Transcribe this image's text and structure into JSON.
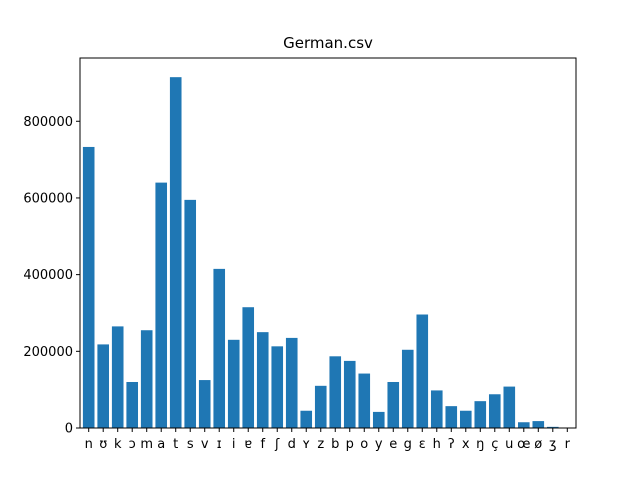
{
  "chart_data": {
    "type": "bar",
    "title": "German.csv",
    "xlabel": "",
    "ylabel": "",
    "categories": [
      "n",
      "ʊ",
      "k",
      "ɔ",
      "m",
      "a",
      "t",
      "s",
      "v",
      "ɪ",
      "i",
      "ɐ",
      "f",
      "ʃ",
      "d",
      "ʏ",
      "z",
      "b",
      "p",
      "o",
      "y",
      "e",
      "g",
      "ɛ",
      "h",
      "ʔ",
      "x",
      "ŋ",
      "ç",
      "u",
      "œ",
      "ø",
      "ʒ",
      "r"
    ],
    "values": [
      733000,
      218000,
      265000,
      120000,
      255000,
      640000,
      915000,
      595000,
      125000,
      415000,
      230000,
      315000,
      250000,
      213000,
      235000,
      45000,
      110000,
      187000,
      175000,
      142000,
      42000,
      120000,
      204000,
      296000,
      98000,
      57000,
      45000,
      70000,
      88000,
      108000,
      15000,
      18000,
      3000,
      1000
    ],
    "ylim": [
      0,
      965000
    ],
    "yticks": [
      0,
      200000,
      400000,
      600000,
      800000
    ],
    "ytick_labels": [
      "0",
      "200000",
      "400000",
      "600000",
      "800000"
    ],
    "grid": false,
    "legend": "none",
    "colors": {
      "bar": "#1f77b4"
    }
  }
}
